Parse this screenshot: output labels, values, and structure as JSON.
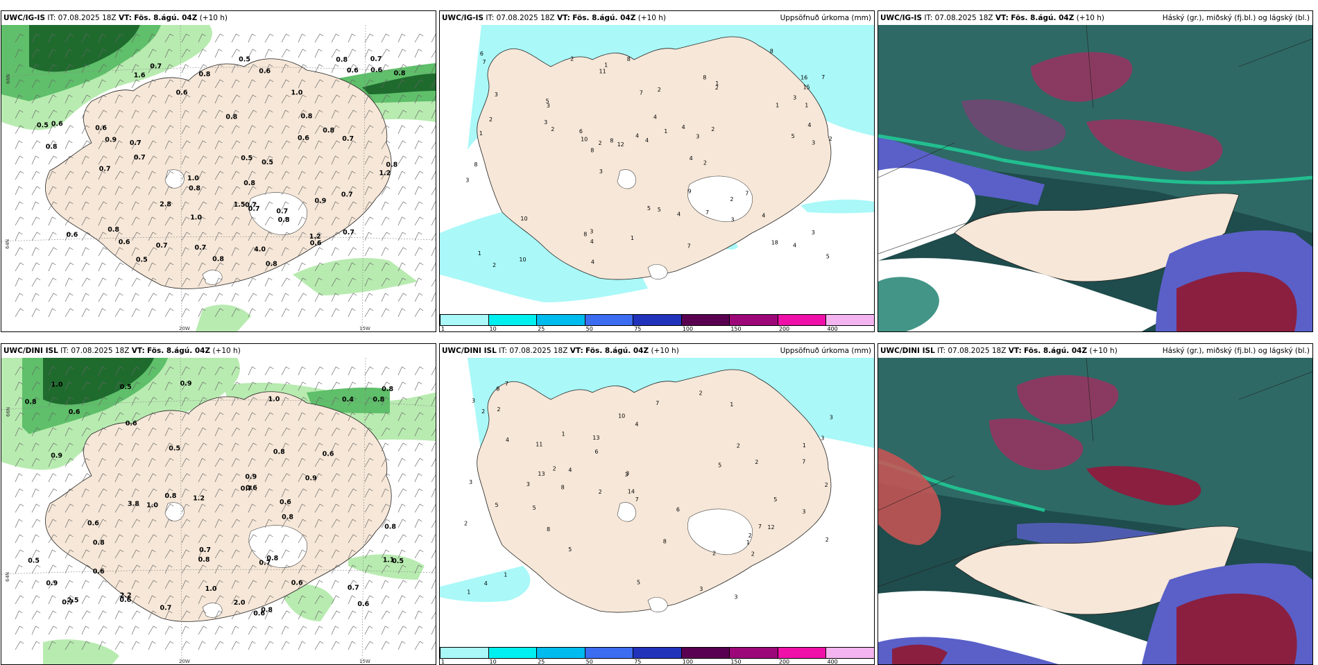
{
  "panels": [
    {
      "model": "UWC/IG-IS",
      "it_label": "IT:",
      "it": "07.08.2025 18Z",
      "vt_label": "VT:",
      "vt": "Fös. 8.ágú. 04Z",
      "lead": "(+10 h)",
      "right_title": "",
      "lat_labels": [
        "66N",
        "64N",
        "63N",
        "66N"
      ],
      "lon_labels": [
        "20W",
        "15W"
      ],
      "values": [
        "0.8",
        "1.6",
        "0.8",
        "0.6",
        "0.8",
        "4.0",
        "1.2",
        "0.7",
        "0.8",
        "0.6",
        "0.6",
        "0.5",
        "1.0",
        "0.7",
        "0.6",
        "0.8",
        "0.8",
        "0.6",
        "0.9",
        "0.7",
        "1.2",
        "0.7",
        "0.5",
        "0.6",
        "0.5",
        "0.8",
        "0.7",
        "0.9",
        "0.8",
        "0.6",
        "0.8",
        "0.7",
        "1.0",
        "0.7",
        "0.7",
        "0.7",
        "0.5",
        "0.6",
        "0.8",
        "0.7",
        "0.8",
        "0.5",
        "0.8",
        "0.7",
        "0.6",
        "0.7",
        "1.5",
        "1.0",
        "0.8",
        "0.6",
        "2.8",
        "0.8",
        "0.7"
      ]
    },
    {
      "model": "UWC/IG-IS",
      "it_label": "IT:",
      "it": "07.08.2025 18Z",
      "vt_label": "VT:",
      "vt": "Fös. 8.ágú. 04Z",
      "lead": "(+10 h)",
      "right_title": "Uppsöfnuð úrkoma (mm)",
      "values": [
        "2",
        "3",
        "2",
        "2",
        "2",
        "3",
        "4",
        "4",
        "8",
        "5",
        "4",
        "3",
        "10",
        "3",
        "4",
        "8",
        "3",
        "7",
        "5",
        "10",
        "5",
        "6",
        "4",
        "8",
        "7",
        "7",
        "8",
        "10",
        "8",
        "5",
        "3",
        "4",
        "5",
        "4",
        "8",
        "15",
        "8",
        "1",
        "11",
        "7",
        "3",
        "4",
        "2",
        "1",
        "1",
        "1",
        "3",
        "1",
        "4",
        "3",
        "1",
        "2",
        "2",
        "1",
        "7",
        "9",
        "16",
        "4",
        "3",
        "2",
        "2",
        "18",
        "2",
        "12",
        "7",
        "6",
        "1",
        "4",
        "2",
        "3"
      ],
      "colorbar_labels": [
        "1",
        "10",
        "25",
        "50",
        "75",
        "100",
        "150",
        "200",
        "400"
      ],
      "colorbar_colors": [
        "#aaf8f8",
        "#00efef",
        "#00bbee",
        "#3c6cf0",
        "#2233bb",
        "#5a0050",
        "#9c0878",
        "#ee10a8",
        "#f3b4ef"
      ]
    },
    {
      "model": "UWC/IG-IS",
      "it_label": "IT:",
      "it": "07.08.2025 18Z",
      "vt_label": "VT:",
      "vt": "Fös. 8.ágú. 04Z",
      "lead": "(+10 h)",
      "right_title": "Háský (gr.), miðský (fj.bl.) og lágský (bl.)"
    },
    {
      "model": "UWC/DINI ISL",
      "it_label": "IT:",
      "it": "07.08.2025 18Z",
      "vt_label": "VT:",
      "vt": "Fös. 8.ágú. 04Z",
      "lead": "(+10 h)",
      "right_title": "",
      "lat_labels": [
        "66N",
        "64N",
        "63N",
        "66N"
      ],
      "lon_labels": [
        "20W",
        "15W"
      ],
      "values": [
        "0.7",
        "0.6",
        "2.2",
        "0.6",
        "0.5",
        "0.6",
        "3.8",
        "0.6",
        "0.9",
        "0.5",
        "0.4",
        "1.0",
        "0.8",
        "0.8",
        "1.0",
        "0.7",
        "0.9",
        "0.6",
        "1.0",
        "0.8",
        "0.7",
        "0.8",
        "0.9",
        "0.7",
        "0.6",
        "0.6",
        "0.5",
        "0.8",
        "1.0",
        "0.8",
        "1.2",
        "0.8",
        "0.7",
        "0.8",
        "0.6",
        "0.6",
        "1.1",
        "0.9",
        "0.8",
        "0.7",
        "0.6",
        "0.9",
        "0.5",
        "2.5",
        "0.6",
        "0.8",
        "0.8",
        "2.0"
      ]
    },
    {
      "model": "UWC/DINI ISL",
      "it_label": "IT:",
      "it": "07.08.2025 18Z",
      "vt_label": "VT:",
      "vt": "Fös. 8.ágú. 04Z",
      "lead": "(+10 h)",
      "right_title": "Uppsöfnuð úrkoma (mm)",
      "values": [
        "7",
        "6",
        "6",
        "4",
        "2",
        "3",
        "8",
        "5",
        "13",
        "7",
        "4",
        "5",
        "11",
        "8",
        "10",
        "12",
        "7",
        "3",
        "3",
        "4",
        "8",
        "3",
        "5",
        "4",
        "5",
        "7",
        "14",
        "5",
        "2",
        "8",
        "2",
        "1",
        "2",
        "2",
        "3",
        "2",
        "1",
        "3",
        "2",
        "3",
        "2",
        "1",
        "2",
        "7",
        "13",
        "2",
        "3",
        "3",
        "1",
        "2",
        "1",
        "5",
        "2",
        "3",
        "1",
        "2"
      ],
      "colorbar_labels": [
        "1",
        "10",
        "25",
        "50",
        "75",
        "100",
        "150",
        "200",
        "400"
      ],
      "colorbar_colors": [
        "#aaf8f8",
        "#00efef",
        "#00bbee",
        "#3c6cf0",
        "#2233bb",
        "#5a0050",
        "#9c0878",
        "#ee10a8",
        "#f3b4ef"
      ]
    },
    {
      "model": "UWC/DINI ISL",
      "it_label": "IT:",
      "it": "07.08.2025 18Z",
      "vt_label": "VT:",
      "vt": "Fös. 8.ágú. 04Z",
      "lead": "(+10 h)",
      "right_title": "Háský (gr.), miðský (fj.bl.) og lágský (bl.)"
    }
  ],
  "colors": {
    "land": "#f6e7d8",
    "precip_light": "#aaf8f8",
    "wind_green_light": "#b8ebb0",
    "wind_green_mid": "#5fbf6a",
    "wind_green_dark": "#1f6b2e",
    "cloud_high": "#2f6a66",
    "cloud_high_edge": "#1fd39a",
    "cloud_mid": "#5a60c8",
    "cloud_low": "#8a1f40"
  }
}
